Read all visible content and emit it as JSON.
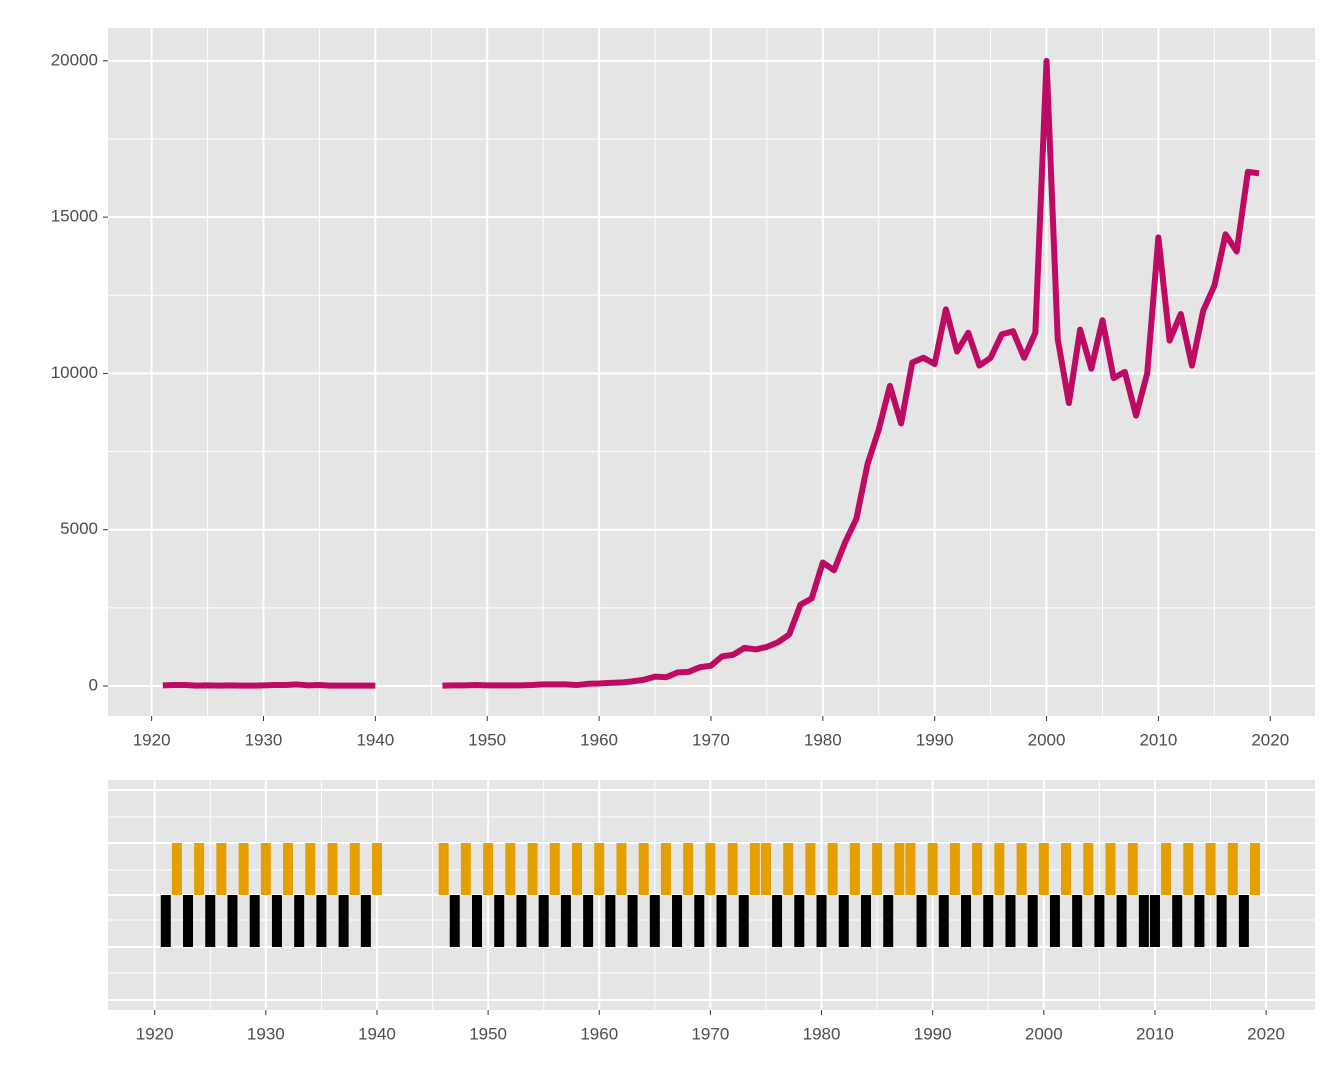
{
  "chart_data": [
    {
      "type": "line",
      "color": "#bf0a63",
      "grid": true,
      "x": [
        1921,
        1922,
        1923,
        1924,
        1925,
        1926,
        1927,
        1928,
        1929,
        1930,
        1931,
        1932,
        1933,
        1934,
        1935,
        1936,
        1937,
        1938,
        1939,
        1940,
        1941,
        1942,
        1943,
        1944,
        1945,
        1946,
        1947,
        1948,
        1949,
        1950,
        1951,
        1952,
        1953,
        1954,
        1955,
        1956,
        1957,
        1958,
        1959,
        1960,
        1961,
        1962,
        1963,
        1964,
        1965,
        1966,
        1967,
        1968,
        1969,
        1970,
        1971,
        1972,
        1973,
        1974,
        1975,
        1976,
        1977,
        1978,
        1979,
        1980,
        1981,
        1982,
        1983,
        1984,
        1985,
        1986,
        1987,
        1988,
        1989,
        1990,
        1991,
        1992,
        1993,
        1994,
        1995,
        1996,
        1997,
        1998,
        1999,
        2000,
        2001,
        2002,
        2003,
        2004,
        2005,
        2006,
        2007,
        2008,
        2009,
        2010,
        2011,
        2012,
        2013,
        2014,
        2015,
        2016,
        2017,
        2018,
        2019
      ],
      "values": [
        20,
        30,
        30,
        10,
        20,
        10,
        20,
        10,
        10,
        20,
        30,
        30,
        50,
        20,
        30,
        10,
        10,
        10,
        10,
        10,
        null,
        null,
        null,
        null,
        null,
        10,
        20,
        20,
        30,
        20,
        20,
        20,
        20,
        30,
        50,
        50,
        50,
        30,
        70,
        80,
        100,
        110,
        150,
        200,
        300,
        280,
        430,
        450,
        600,
        650,
        950,
        1000,
        1220,
        1170,
        1250,
        1400,
        1650,
        2600,
        2800,
        3950,
        3700,
        4600,
        5350,
        7100,
        8200,
        9600,
        8400,
        10350,
        10500,
        10300,
        12050,
        10700,
        11300,
        10250,
        10500,
        11250,
        11350,
        10500,
        11300,
        20000,
        11100,
        9050,
        11400,
        10150,
        11700,
        9850,
        10050,
        8650,
        10000,
        14350,
        11050,
        11900,
        10250,
        12000,
        12800,
        14450,
        13900,
        16450,
        16400
      ],
      "xlim": [
        1916.1,
        2024.0
      ],
      "xticks": [
        1920,
        1930,
        1940,
        1950,
        1960,
        1970,
        1980,
        1990,
        2000,
        2010,
        2020
      ],
      "ylim": [
        -960,
        21050
      ],
      "yticks": [
        0,
        5000,
        10000,
        15000,
        20000
      ]
    },
    {
      "type": "tile",
      "grid": true,
      "series": [
        {
          "color": "#e69f00",
          "x": [
            1922,
            1924,
            1926,
            1928,
            1930,
            1932,
            1934,
            1936,
            1938,
            1940,
            1946,
            1948,
            1950,
            1952,
            1954,
            1956,
            1958,
            1960,
            1962,
            1964,
            1966,
            1968,
            1970,
            1972,
            1974,
            1975,
            1977,
            1979,
            1981,
            1983,
            1985,
            1987,
            1988,
            1990,
            1992,
            1994,
            1996,
            1998,
            2000,
            2002,
            2004,
            2006,
            2008,
            2011,
            2013,
            2015,
            2017,
            2019
          ]
        },
        {
          "color": "#000000",
          "x": [
            1921,
            1923,
            1925,
            1927,
            1929,
            1931,
            1933,
            1935,
            1937,
            1939,
            1947,
            1949,
            1951,
            1953,
            1955,
            1957,
            1959,
            1961,
            1963,
            1965,
            1967,
            1969,
            1971,
            1973,
            1976,
            1978,
            1980,
            1982,
            1984,
            1986,
            1989,
            1991,
            1993,
            1995,
            1997,
            1999,
            2001,
            2003,
            2005,
            2007,
            2009,
            2010,
            2012,
            2014,
            2016,
            2018
          ]
        }
      ],
      "xlim": [
        1915.8,
        2024.4
      ],
      "xticks": [
        1920,
        1930,
        1940,
        1950,
        1960,
        1970,
        1980,
        1990,
        2000,
        2010,
        2020
      ]
    }
  ]
}
